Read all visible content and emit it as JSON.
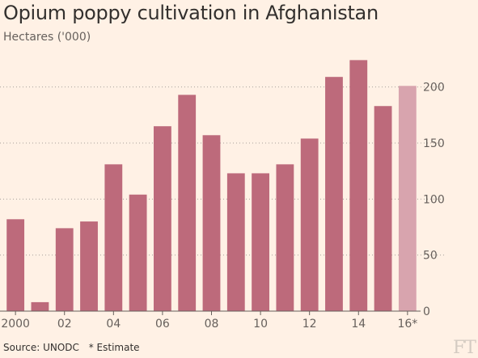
{
  "chart_data": {
    "type": "bar",
    "title": "Opium poppy cultivation in Afghanistan",
    "subtitle": "Hectares ('000)",
    "categories": [
      "2000",
      "2001",
      "2002",
      "2003",
      "2004",
      "2005",
      "2006",
      "2007",
      "2008",
      "2009",
      "2010",
      "2011",
      "2012",
      "2013",
      "2014",
      "2015",
      "2016"
    ],
    "values": [
      82,
      8,
      74,
      80,
      131,
      104,
      165,
      193,
      157,
      123,
      123,
      131,
      154,
      209,
      224,
      183,
      201
    ],
    "estimate_flags": [
      false,
      false,
      false,
      false,
      false,
      false,
      false,
      false,
      false,
      false,
      false,
      false,
      false,
      false,
      false,
      false,
      true
    ],
    "x_tick_labels": [
      {
        "index": 0,
        "label": "2000"
      },
      {
        "index": 2,
        "label": "02"
      },
      {
        "index": 4,
        "label": "04"
      },
      {
        "index": 6,
        "label": "06"
      },
      {
        "index": 8,
        "label": "08"
      },
      {
        "index": 10,
        "label": "10"
      },
      {
        "index": 12,
        "label": "12"
      },
      {
        "index": 14,
        "label": "14"
      },
      {
        "index": 16,
        "label": "16*"
      }
    ],
    "y_ticks": [
      0,
      50,
      100,
      150,
      200
    ],
    "ylim": [
      0,
      225
    ],
    "y_axis_side": "right",
    "grid": true,
    "colors": {
      "bar": "#bd6a7b",
      "estimate": "#d8a4ae",
      "grid": "#a8a19b",
      "text": "#66605c"
    }
  },
  "footer": {
    "source": "Source: UNODC",
    "note": "* Estimate",
    "logo": "FT"
  }
}
